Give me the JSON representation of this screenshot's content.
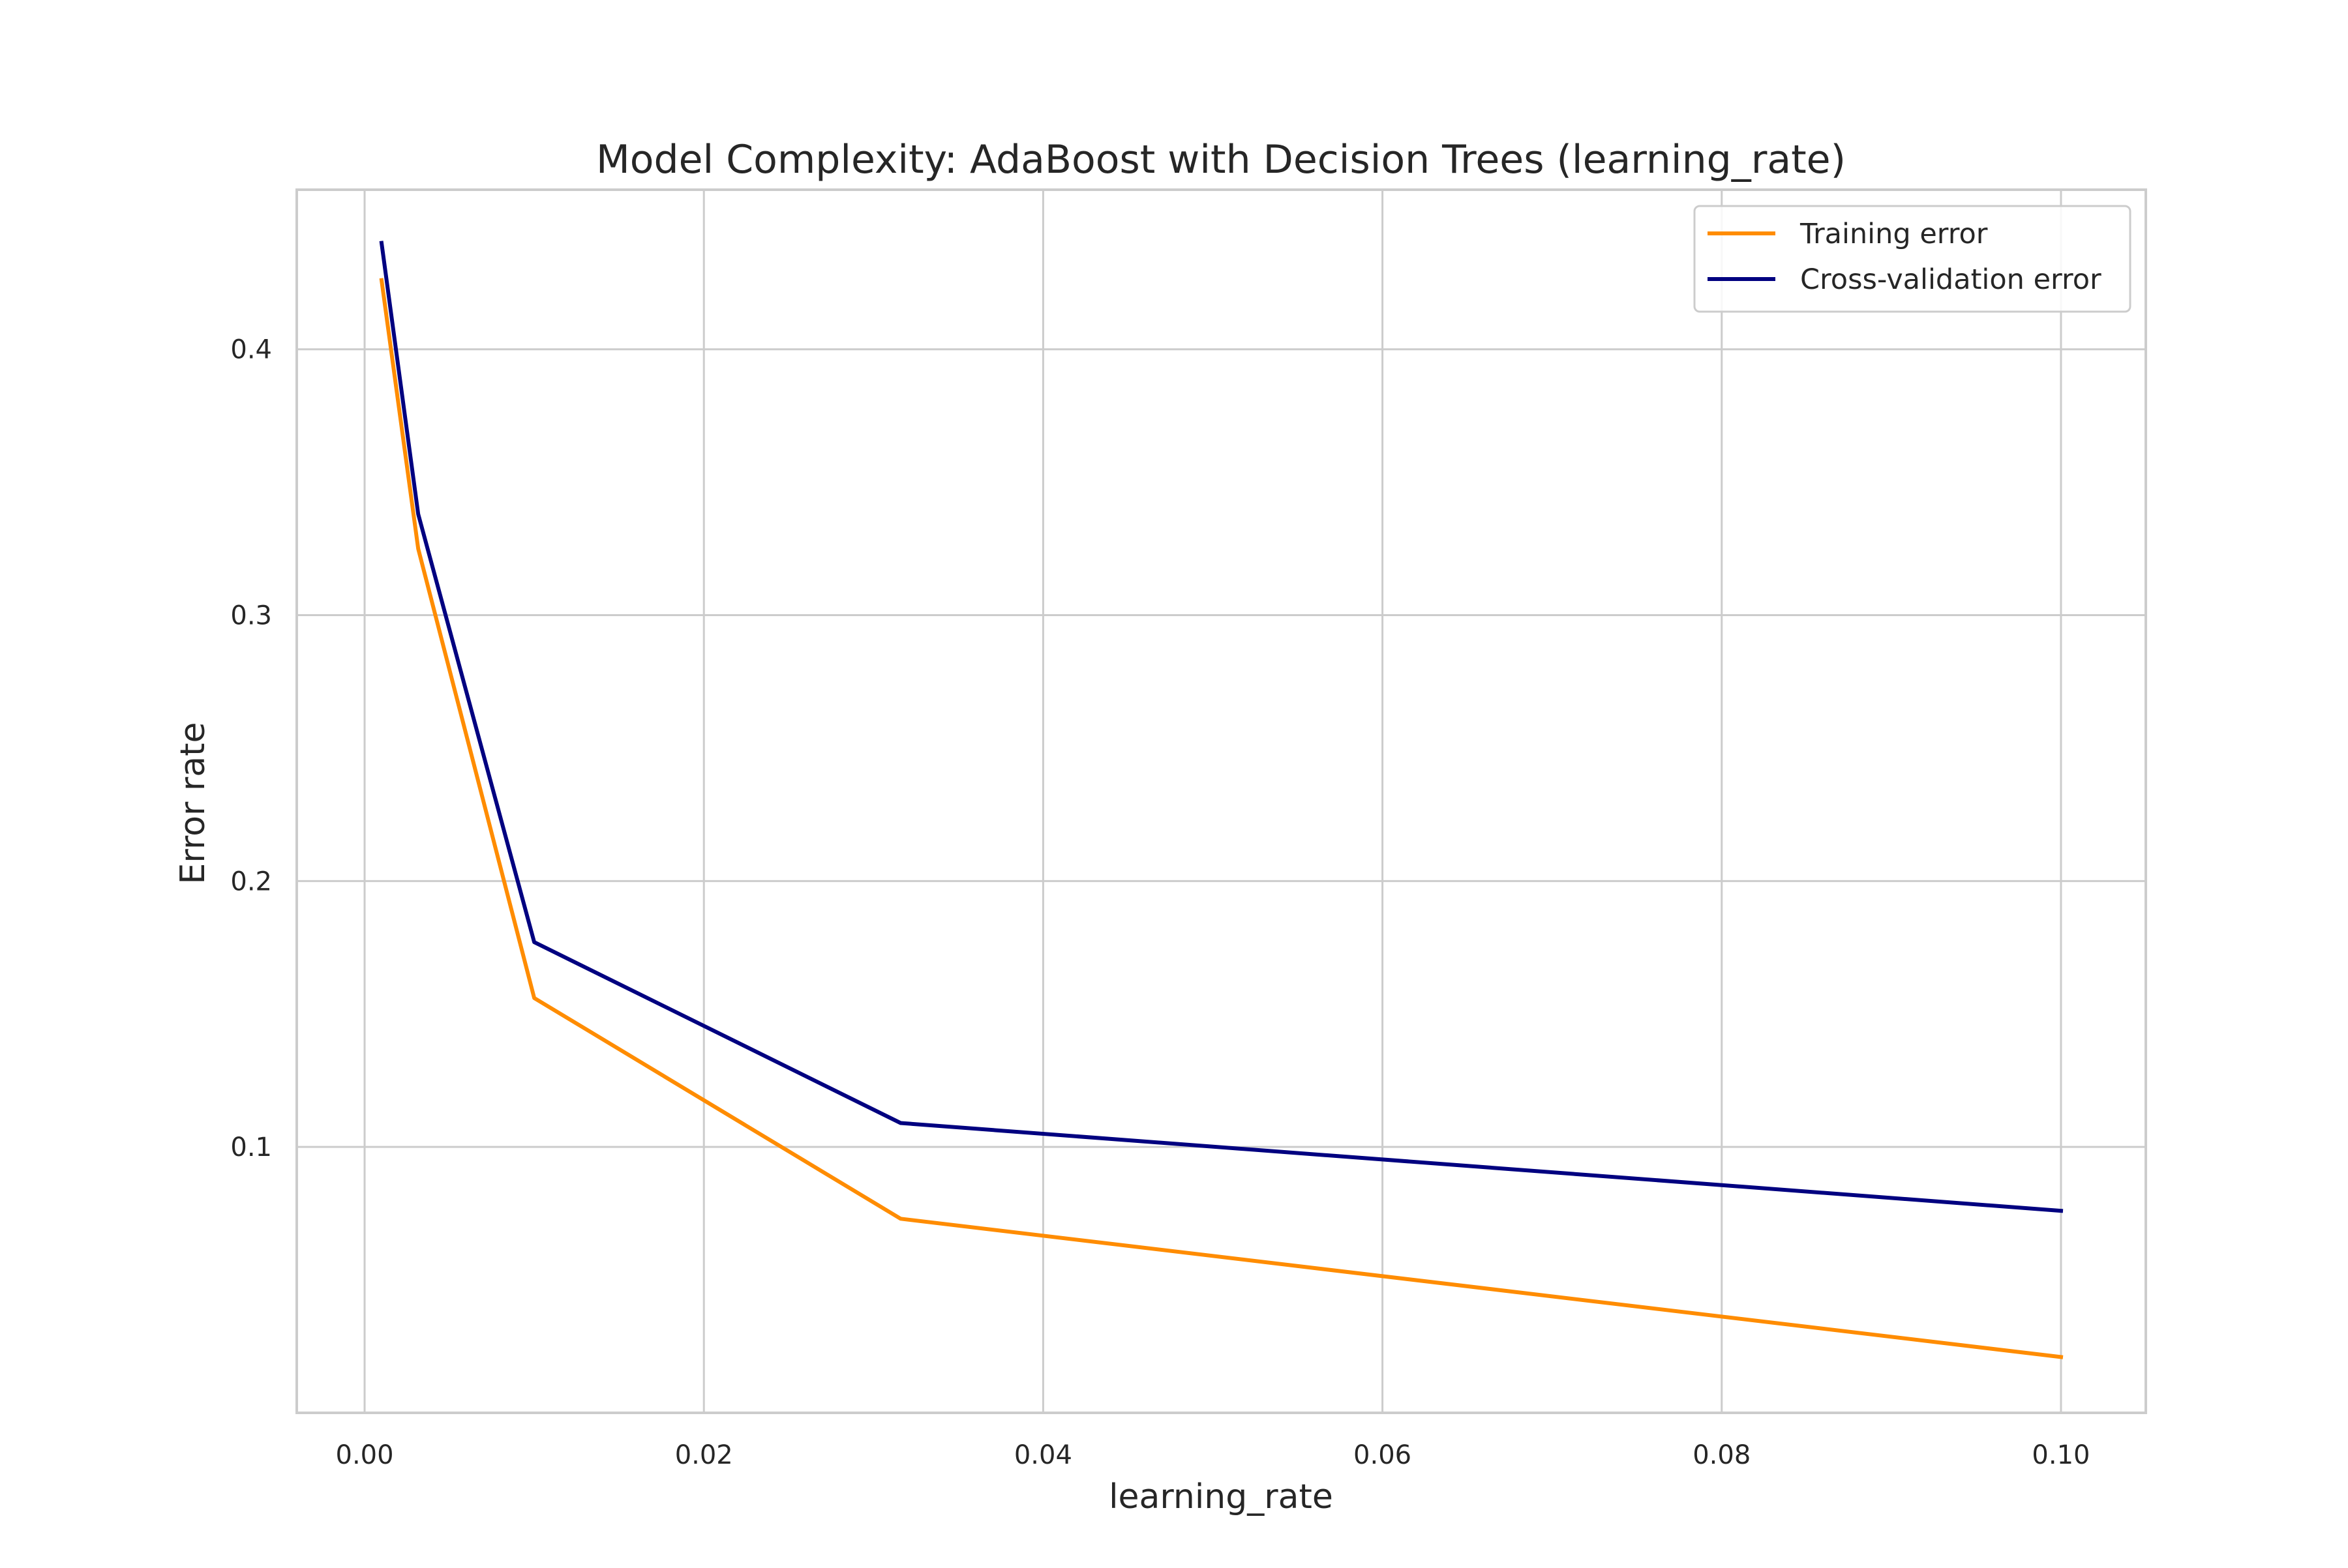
{
  "chart_data": {
    "type": "line",
    "title": "Model Complexity: AdaBoost with Decision Trees (learning_rate)",
    "xlabel": "learning_rate",
    "ylabel": "Error rate",
    "xlim": [
      -0.004,
      0.105
    ],
    "ylim": [
      0.0,
      0.46
    ],
    "x_ticks": [
      0.0,
      0.02,
      0.04,
      0.06,
      0.08,
      0.1
    ],
    "x_tick_labels": [
      "0.00",
      "0.02",
      "0.04",
      "0.06",
      "0.08",
      "0.10"
    ],
    "y_ticks": [
      0.1,
      0.2,
      0.3,
      0.4
    ],
    "y_tick_labels": [
      "0.1",
      "0.2",
      "0.3",
      "0.4"
    ],
    "grid": true,
    "legend_position": "top-right",
    "x": [
      0.001,
      0.00316,
      0.01,
      0.0316,
      0.1
    ],
    "series": [
      {
        "name": "Training error",
        "color": "#ff8c00",
        "values": [
          0.426,
          0.325,
          0.156,
          0.073,
          0.021
        ]
      },
      {
        "name": "Cross-validation error",
        "color": "#000080",
        "values": [
          0.44,
          0.338,
          0.177,
          0.109,
          0.076
        ]
      }
    ]
  }
}
